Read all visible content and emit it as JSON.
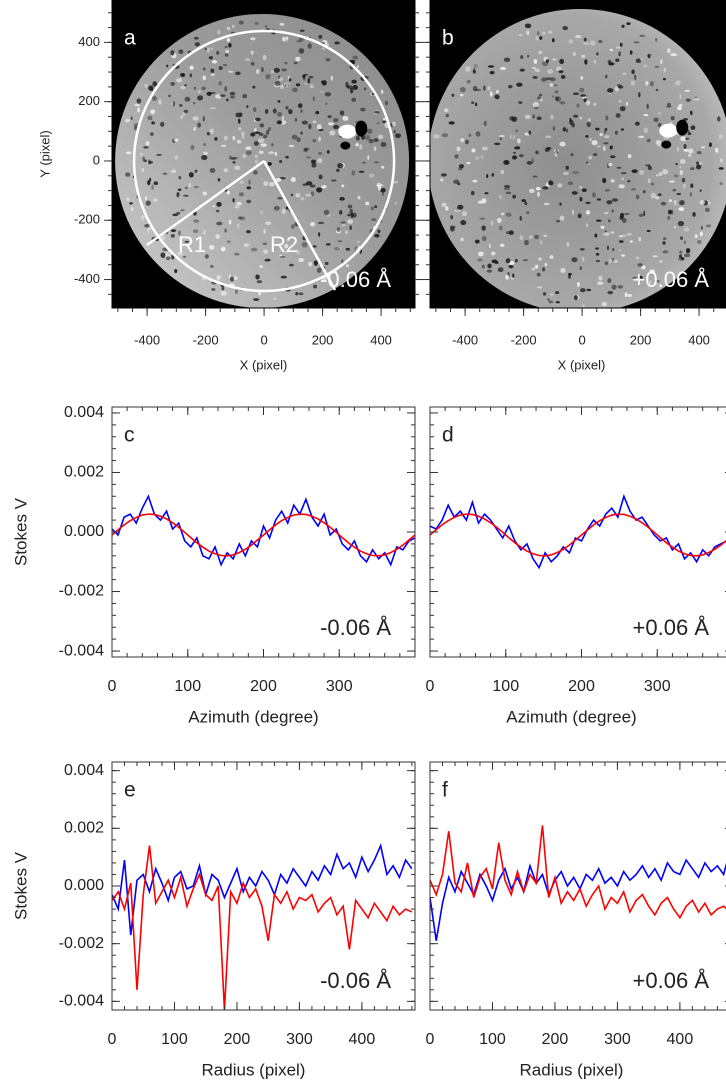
{
  "chart_data": [
    {
      "type": "image",
      "label": "a",
      "annotation": "-0.06 Å",
      "xlabel": "X (pixel)",
      "ylabel": "Y (pixel)",
      "regions": [
        "R1",
        "R2"
      ],
      "xlim": [
        -520,
        516
      ],
      "ylim": [
        -496,
        543
      ],
      "xticks": [
        -400,
        -200,
        0,
        200,
        400
      ],
      "yticks": [
        400,
        200,
        0,
        -200,
        -400
      ]
    },
    {
      "type": "image",
      "label": "b",
      "annotation": "+0.06 Å",
      "xlabel": "X (pixel)",
      "ytick_labels": false,
      "xlim": [
        -520,
        516
      ],
      "ylim": [
        -496,
        543
      ],
      "xticks": [
        -400,
        -200,
        0,
        200,
        400
      ],
      "yticks": [
        400,
        200,
        0,
        -200,
        -400
      ]
    },
    {
      "type": "line",
      "label": "c",
      "annotation": "-0.06 Å",
      "xlabel": "Azimuth (degree)",
      "ylabel": "Stokes V",
      "xlim": [
        0,
        400
      ],
      "ylim": [
        -0.0042,
        0.0042
      ],
      "xticks": [
        0,
        100,
        200,
        300
      ],
      "yticks": [
        0.004,
        0.002,
        {
          "value": 0,
          "label": "0.000"
        },
        -0.002,
        -0.004
      ],
      "x": [
        0,
        8,
        16,
        24,
        32,
        40,
        48,
        56,
        64,
        72,
        80,
        88,
        96,
        104,
        112,
        120,
        128,
        136,
        144,
        152,
        160,
        168,
        176,
        184,
        192,
        200,
        208,
        216,
        224,
        232,
        240,
        248,
        256,
        264,
        272,
        280,
        288,
        296,
        304,
        312,
        320,
        328,
        336,
        344,
        352,
        360,
        368,
        376,
        384,
        392,
        400
      ],
      "series": [
        {
          "color": "#0000ff",
          "values": [
            0.0001,
            -0.0001,
            0.0005,
            0.0006,
            0.0003,
            0.0008,
            0.0012,
            0.0006,
            0.0004,
            0.0007,
            0.0001,
            0.0003,
            -0.0003,
            -0.0005,
            -0.0002,
            -0.0008,
            -0.0009,
            -0.0005,
            -0.0011,
            -0.0007,
            -0.0009,
            -0.0004,
            -0.0008,
            -0.0003,
            -0.0005,
            0.0002,
            -0.0002,
            0.0004,
            0.0007,
            0.0003,
            0.0009,
            0.0006,
            0.0011,
            0.0005,
            0.0002,
            0.0006,
            -0.0001,
            0.0001,
            -0.0004,
            -0.0006,
            -0.0003,
            -0.0008,
            -0.001,
            -0.0006,
            -0.0009,
            -0.0007,
            -0.0011,
            -0.0005,
            -0.0006,
            -0.0003,
            -0.0002
          ]
        },
        {
          "color": "#ff0000",
          "values": [
            -0.0001,
            7e-05,
            0.00024,
            0.00038,
            0.00049,
            0.00057,
            0.0006,
            0.00059,
            0.00053,
            0.00044,
            0.00031,
            0.00016,
            -1e-05,
            -0.00019,
            -0.00036,
            -0.00051,
            -0.00064,
            -0.00073,
            -0.00079,
            -0.0008,
            -0.00077,
            -0.00069,
            -0.00058,
            -0.00044,
            -0.00027,
            -0.0001,
            7e-05,
            0.00024,
            0.00038,
            0.00049,
            0.00057,
            0.0006,
            0.00059,
            0.00053,
            0.00044,
            0.00031,
            0.00016,
            -1e-05,
            -0.00019,
            -0.00036,
            -0.00051,
            -0.00064,
            -0.00073,
            -0.00079,
            -0.0008,
            -0.00077,
            -0.00069,
            -0.00058,
            -0.00044,
            -0.00027,
            -0.0001
          ]
        }
      ]
    },
    {
      "type": "line",
      "label": "d",
      "annotation": "+0.06 Å",
      "xlabel": "Azimuth (degree)",
      "ytick_labels": false,
      "xlim": [
        0,
        400
      ],
      "ylim": [
        -0.0042,
        0.0042
      ],
      "xticks": [
        0,
        100,
        200,
        300
      ],
      "yticks": [
        0.004,
        0.002,
        {
          "value": 0,
          "label": "0.000"
        },
        -0.002,
        -0.004
      ],
      "x": [
        0,
        8,
        16,
        24,
        32,
        40,
        48,
        56,
        64,
        72,
        80,
        88,
        96,
        104,
        112,
        120,
        128,
        136,
        144,
        152,
        160,
        168,
        176,
        184,
        192,
        200,
        208,
        216,
        224,
        232,
        240,
        248,
        256,
        264,
        272,
        280,
        288,
        296,
        304,
        312,
        320,
        328,
        336,
        344,
        352,
        360,
        368,
        376,
        384,
        392,
        400
      ],
      "series": [
        {
          "color": "#0000ff",
          "values": [
            0.0002,
            0.0001,
            0.0004,
            0.0009,
            0.0005,
            0.0007,
            0.0004,
            0.001,
            0.0003,
            0.0006,
            0.0004,
            0.0001,
            -0.0002,
            0.0002,
            -0.0003,
            -0.0006,
            -0.0004,
            -0.0009,
            -0.0012,
            -0.0007,
            -0.001,
            -0.0008,
            -0.0005,
            -0.0007,
            -0.0002,
            -0.0003,
            0.0001,
            0.0004,
            0.0002,
            0.0006,
            0.0008,
            0.0005,
            0.0012,
            0.0007,
            0.0004,
            0.0005,
            0.0002,
            -0.0001,
            -0.0003,
            -0.0002,
            -0.0006,
            -0.0004,
            -0.0009,
            -0.0007,
            -0.001,
            -0.0006,
            -0.0008,
            -0.0005,
            -0.0004,
            -0.0003,
            -0.0002
          ]
        },
        {
          "color": "#ff0000",
          "values": [
            -0.0001,
            7e-05,
            0.00024,
            0.00038,
            0.00049,
            0.00057,
            0.0006,
            0.00059,
            0.00053,
            0.00044,
            0.00031,
            0.00016,
            -1e-05,
            -0.00019,
            -0.00036,
            -0.00051,
            -0.00064,
            -0.00073,
            -0.00079,
            -0.0008,
            -0.00077,
            -0.00069,
            -0.00058,
            -0.00044,
            -0.00027,
            -0.0001,
            7e-05,
            0.00024,
            0.00038,
            0.00049,
            0.00057,
            0.0006,
            0.00059,
            0.00053,
            0.00044,
            0.00031,
            0.00016,
            -1e-05,
            -0.00019,
            -0.00036,
            -0.00051,
            -0.00064,
            -0.00073,
            -0.00079,
            -0.0008,
            -0.00077,
            -0.00069,
            -0.00058,
            -0.00044,
            -0.00027,
            -0.0001
          ]
        }
      ]
    },
    {
      "type": "line",
      "label": "e",
      "annotation": "-0.06 Å",
      "xlabel": "Radius (pixel)",
      "ylabel": "Stokes V",
      "xlim": [
        0,
        485
      ],
      "ylim": [
        -0.0043,
        0.0043
      ],
      "xticks": [
        0,
        100,
        200,
        300,
        400
      ],
      "yticks": [
        0.004,
        0.002,
        {
          "value": 0,
          "label": "0.000"
        },
        -0.002,
        -0.004
      ],
      "x": [
        0,
        10,
        20,
        30,
        40,
        50,
        60,
        70,
        80,
        90,
        100,
        110,
        120,
        130,
        140,
        150,
        160,
        170,
        180,
        190,
        200,
        210,
        220,
        230,
        240,
        250,
        260,
        270,
        280,
        290,
        300,
        310,
        320,
        330,
        340,
        350,
        360,
        370,
        380,
        390,
        400,
        410,
        420,
        430,
        440,
        450,
        460,
        470,
        480
      ],
      "series": [
        {
          "color": "#0000ff",
          "values": [
            -0.0003,
            -0.0008,
            0.0009,
            -0.0017,
            0.0002,
            0.0004,
            -0.0002,
            0.0006,
            0.0001,
            -0.0005,
            0.0003,
            0.0005,
            -0.0001,
            0,
            0.0007,
            -0.0003,
            0.0004,
            0.0002,
            -0.0004,
            0.0001,
            0.0006,
            -0.0002,
            0.0003,
            0,
            0.0005,
            0.0002,
            -0.0003,
            0.0004,
            0.0001,
            0.0006,
            0.0003,
            0,
            0.0005,
            0.0002,
            0.0007,
            0.0004,
            0.0011,
            0.0006,
            0.0008,
            0.0003,
            0.001,
            0.0005,
            0.0009,
            0.0014,
            0.0004,
            0.0007,
            0.0003,
            0.0009,
            0.0006
          ]
        },
        {
          "color": "#ff0000",
          "values": [
            -0.0005,
            -0.0002,
            -0.0008,
            0.0001,
            -0.0036,
            -0.0003,
            0.0014,
            -0.0006,
            -0.0002,
            0.0002,
            -0.0004,
            0.0003,
            -0.0007,
            -0.0001,
            0.0004,
            -0.0003,
            -0.0005,
            0,
            -0.0043,
            -0.0002,
            -0.0006,
            0.0001,
            -0.0004,
            -0.0001,
            -0.0007,
            -0.0019,
            -0.0003,
            -0.0006,
            -0.0002,
            -0.0008,
            -0.0004,
            -0.0005,
            -0.0003,
            -0.0009,
            -0.0006,
            -0.0004,
            -0.001,
            -0.0007,
            -0.0022,
            -0.0005,
            -0.0008,
            -0.0011,
            -0.0006,
            -0.0009,
            -0.0012,
            -0.0007,
            -0.001,
            -0.0008,
            -0.0009
          ]
        }
      ]
    },
    {
      "type": "line",
      "label": "f",
      "annotation": "+0.06 Å",
      "xlabel": "Radius (pixel)",
      "ytick_labels": false,
      "xlim": [
        0,
        485
      ],
      "ylim": [
        -0.0043,
        0.0043
      ],
      "xticks": [
        0,
        100,
        200,
        300,
        400
      ],
      "yticks": [
        0.004,
        0.002,
        {
          "value": 0,
          "label": "0.000"
        },
        -0.002,
        -0.004
      ],
      "x": [
        0,
        10,
        20,
        30,
        40,
        50,
        60,
        70,
        80,
        90,
        100,
        110,
        120,
        130,
        140,
        150,
        160,
        170,
        180,
        190,
        200,
        210,
        220,
        230,
        240,
        250,
        260,
        270,
        280,
        290,
        300,
        310,
        320,
        330,
        340,
        350,
        360,
        370,
        380,
        390,
        400,
        410,
        420,
        430,
        440,
        450,
        460,
        470,
        480
      ],
      "series": [
        {
          "color": "#0000ff",
          "values": [
            -0.0004,
            -0.0019,
            -0.0006,
            0.0003,
            -0.0002,
            0.0005,
            0.0001,
            -0.0003,
            0.0004,
            0,
            -0.0005,
            0.0002,
            0.0006,
            -0.0001,
            0.0003,
            -0.0002,
            0.0007,
            0.0001,
            0.0004,
            -0.0003,
            0.0002,
            0.0005,
            0,
            0.0003,
            -0.0001,
            0.0004,
            0.0002,
            0.0006,
            0.0001,
            0.0003,
            0,
            0.0005,
            0.0002,
            0.0004,
            0.0007,
            0.0003,
            0.0006,
            0.0002,
            0.0008,
            0.0005,
            0.0004,
            0.0009,
            0.0006,
            0.0003,
            0.0008,
            0.0005,
            0.0007,
            0.0004,
            0.0012
          ]
        },
        {
          "color": "#ff0000",
          "values": [
            0.0002,
            -0.0003,
            0.0004,
            0.0019,
            0.0001,
            -0.0002,
            0.0008,
            -0.0004,
            0.0003,
            0.0006,
            -0.0001,
            0.0015,
            0.0002,
            -0.0003,
            0.0005,
            -0.0002,
            0.0004,
            0.0001,
            0.0021,
            -0.0004,
            0.0003,
            -0.0006,
            -0.0002,
            -0.0005,
            -0.0001,
            -0.0007,
            -0.0003,
            0,
            -0.0008,
            -0.0004,
            -0.0006,
            -0.0002,
            -0.0009,
            -0.0005,
            -0.0003,
            -0.0007,
            -0.001,
            -0.0006,
            -0.0004,
            -0.0008,
            -0.0011,
            -0.0007,
            -0.0005,
            -0.0009,
            -0.0006,
            -0.001,
            -0.0008,
            -0.0007,
            -0.0009
          ]
        }
      ]
    }
  ]
}
